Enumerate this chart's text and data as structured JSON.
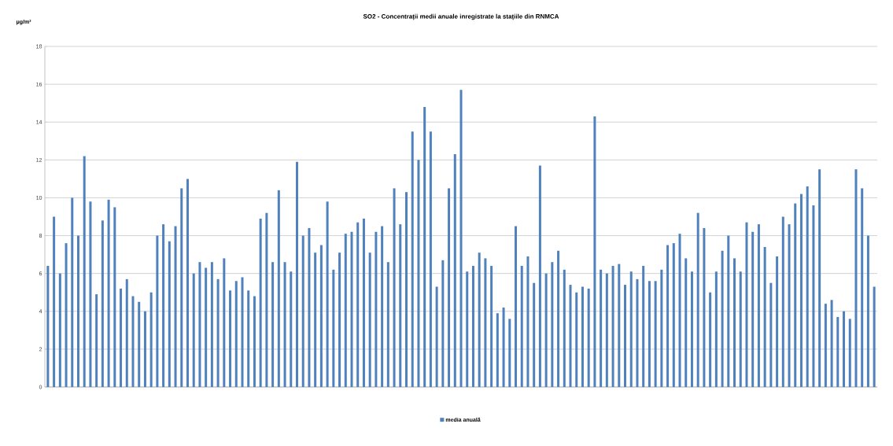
{
  "chart_data": {
    "type": "bar",
    "title": "SO2 - Concentrații medii anuale inregistrate la stațiile din RNMCA",
    "ylabel": "µg/m³",
    "categories": [
      null,
      null,
      null,
      null,
      null,
      null,
      null,
      null,
      null,
      null,
      null,
      null,
      null,
      null,
      null,
      null,
      null,
      null,
      null,
      null,
      null,
      null,
      null,
      null,
      null,
      null,
      null,
      null,
      null,
      null,
      null,
      null,
      null,
      null,
      null,
      null,
      null,
      null,
      null,
      null,
      null,
      null,
      null,
      null,
      null,
      null,
      null,
      null,
      null,
      null,
      null,
      null,
      null,
      null,
      null,
      null,
      null,
      null,
      null,
      null,
      null,
      null,
      null,
      null,
      null,
      null,
      null,
      null,
      null,
      null,
      null,
      null,
      null,
      null,
      null,
      null,
      null,
      null,
      null,
      null,
      null,
      null,
      null,
      null,
      null,
      null,
      null,
      null,
      null,
      null,
      null,
      null,
      null,
      null,
      null,
      null,
      null,
      null,
      null,
      null,
      null,
      null,
      null,
      null,
      null,
      null,
      null,
      null,
      null,
      null,
      null,
      null,
      null,
      null,
      null,
      null,
      null,
      null,
      null,
      null,
      null,
      null,
      null,
      null,
      null,
      null,
      null,
      null,
      null,
      null,
      null,
      null,
      null,
      null,
      null,
      null,
      null
    ],
    "series": [
      {
        "name": "media anuală",
        "color": "#4f81bd",
        "values": [
          6.4,
          9.0,
          6.0,
          7.6,
          10.0,
          8.0,
          12.2,
          9.8,
          4.9,
          8.8,
          9.9,
          9.5,
          5.2,
          5.7,
          4.8,
          4.5,
          4.0,
          5.0,
          8.0,
          8.6,
          7.7,
          8.5,
          10.5,
          11.0,
          6.0,
          6.6,
          6.3,
          6.6,
          5.7,
          6.8,
          5.1,
          5.6,
          5.8,
          5.1,
          4.8,
          8.9,
          9.2,
          6.6,
          10.4,
          6.6,
          6.1,
          11.9,
          8.0,
          8.4,
          7.1,
          7.5,
          9.8,
          6.2,
          7.1,
          8.1,
          8.2,
          8.7,
          8.9,
          7.1,
          8.2,
          8.5,
          6.6,
          10.5,
          8.6,
          10.3,
          13.5,
          12.0,
          14.8,
          13.5,
          5.3,
          6.7,
          10.5,
          12.3,
          15.7,
          6.1,
          6.4,
          7.1,
          6.8,
          6.4,
          3.9,
          4.2,
          3.6,
          8.5,
          6.4,
          6.9,
          5.5,
          11.7,
          6.0,
          6.6,
          7.2,
          6.2,
          5.4,
          5.0,
          5.3,
          5.2,
          14.3,
          6.2,
          6.0,
          6.4,
          6.5,
          5.4,
          6.1,
          5.7,
          6.4,
          5.6,
          5.6,
          6.2,
          7.5,
          7.6,
          8.1,
          6.8,
          6.1,
          9.2,
          8.4,
          5.0,
          6.1,
          7.2,
          8.0,
          6.8,
          6.1,
          8.7,
          8.2,
          8.6,
          7.4,
          5.5,
          6.9,
          9.0,
          8.6,
          9.7,
          10.2,
          10.6,
          9.6,
          11.5,
          4.4,
          4.6,
          3.7,
          4.0,
          3.6,
          11.5,
          10.5,
          8.0,
          5.3
        ]
      }
    ],
    "ylim": [
      0,
      18
    ],
    "yticks": [
      0,
      2,
      4,
      6,
      8,
      10,
      12,
      14,
      16,
      18
    ],
    "grid": "y",
    "legend": "bottom"
  }
}
